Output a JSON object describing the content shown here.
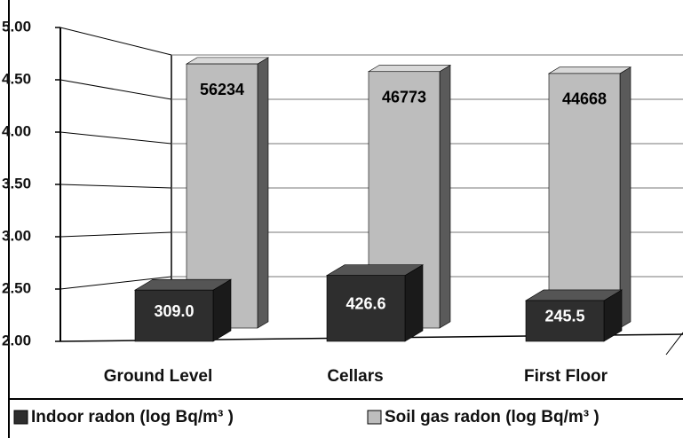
{
  "chart_data": {
    "type": "bar3d",
    "categories": [
      "Ground Level",
      "Cellars",
      "First Floor"
    ],
    "series": [
      {
        "name": "Indoor radon (log Bq/m³ )",
        "color": "#2e2e2e",
        "values": [
          2.49,
          2.63,
          2.39
        ],
        "value_labels": [
          "309.0",
          "426.6",
          "245.5"
        ]
      },
      {
        "name": "Soil gas radon (log Bq/m³ )",
        "color": "#bdbdbd",
        "values": [
          4.75,
          4.67,
          4.65
        ],
        "value_labels": [
          "56234",
          "46773",
          "44668"
        ]
      }
    ],
    "ylim": [
      2,
      5
    ],
    "yticks": [
      {
        "value": 2,
        "label": "2.00"
      },
      {
        "value": 2.5,
        "label": "2.50"
      },
      {
        "value": 3,
        "label": "3.00"
      },
      {
        "value": 3.5,
        "label": "3.50"
      },
      {
        "value": 4,
        "label": "4.00"
      },
      {
        "value": 4.5,
        "label": "4.50"
      },
      {
        "value": 5,
        "label": "5.00"
      }
    ],
    "grid": true,
    "legend": "bottom"
  }
}
